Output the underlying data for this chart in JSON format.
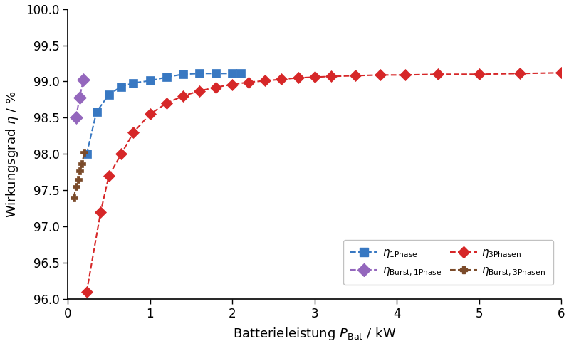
{
  "xlim": [
    0,
    6.0
  ],
  "ylim": [
    96.0,
    100.0
  ],
  "yticks": [
    96.0,
    96.5,
    97.0,
    97.5,
    98.0,
    98.5,
    99.0,
    99.5,
    100.0
  ],
  "xticks": [
    0,
    1,
    2,
    3,
    4,
    5,
    6
  ],
  "blue_x": [
    0.23,
    0.35,
    0.5,
    0.65,
    0.8,
    1.0,
    1.2,
    1.4,
    1.6,
    1.8,
    2.0,
    2.1
  ],
  "blue_y": [
    98.0,
    98.58,
    98.82,
    98.93,
    98.98,
    99.01,
    99.06,
    99.1,
    99.11,
    99.11,
    99.11,
    99.11
  ],
  "red_x": [
    0.23,
    0.4,
    0.5,
    0.65,
    0.8,
    1.0,
    1.2,
    1.4,
    1.6,
    1.8,
    2.0,
    2.2,
    2.4,
    2.6,
    2.8,
    3.0,
    3.2,
    3.5,
    3.8,
    4.1,
    4.5,
    5.0,
    5.5,
    6.0
  ],
  "red_y": [
    96.1,
    97.2,
    97.7,
    98.0,
    98.3,
    98.55,
    98.7,
    98.8,
    98.87,
    98.92,
    98.96,
    98.99,
    99.01,
    99.03,
    99.05,
    99.06,
    99.07,
    99.08,
    99.09,
    99.09,
    99.1,
    99.1,
    99.11,
    99.12
  ],
  "purple_x": [
    0.1,
    0.145,
    0.19
  ],
  "purple_y": [
    98.5,
    98.78,
    99.02
  ],
  "brown_x": [
    0.075,
    0.1,
    0.125,
    0.15,
    0.175,
    0.2
  ],
  "brown_y": [
    97.4,
    97.55,
    97.65,
    97.77,
    97.87,
    98.02
  ],
  "color_blue": "#3878c2",
  "color_red": "#d62728",
  "color_purple": "#9467bd",
  "color_brown": "#7B4B2A",
  "ylabel": "Wirkungsgrad $\\eta$ / %",
  "xlabel": "Batterieleistung $P_\\mathrm{Bat}$ / kW",
  "legend_blue": "$\\eta_{\\mathrm{1Phase}}$",
  "legend_red": "$\\eta_{\\mathrm{3Phasen}}$",
  "legend_purple": "$\\eta_{\\mathrm{Burst,1Phase}}$",
  "legend_brown": "$\\eta_{\\mathrm{Burst,3Phasen}}$"
}
